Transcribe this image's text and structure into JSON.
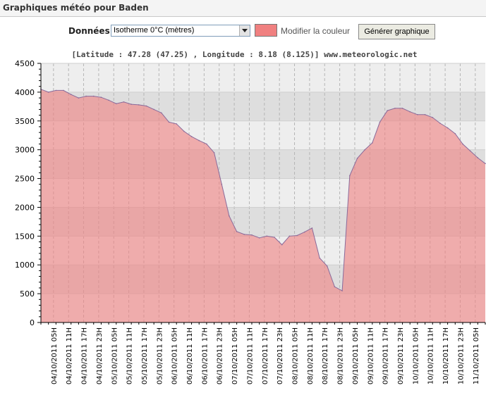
{
  "page": {
    "title": "Graphiques météo pour Baden"
  },
  "controls": {
    "data_label": "Données",
    "data_select_value": "Isotherme 0°C (mètres)",
    "swatch_color": "#f08080",
    "modify_color_label": "Modifier la couleur",
    "generate_button_label": "Générer graphique"
  },
  "coords_text": "[Latitude : 47.28 (47.25) , Longitude : 8.18 (8.125)] www.meteorologic.net",
  "chart_data": {
    "type": "area",
    "title": "",
    "xlabel": "",
    "ylabel": "",
    "ylim": [
      0,
      4500
    ],
    "yticks": [
      0,
      500,
      1000,
      1500,
      2000,
      2500,
      3000,
      3500,
      4000,
      4500
    ],
    "grid": true,
    "fill_color": "#f08080",
    "x_labels": [
      "04/10/2011 05H",
      "04/10/2011 11H",
      "04/10/2011 17H",
      "04/10/2011 23H",
      "05/10/2011 05H",
      "05/10/2011 11H",
      "05/10/2011 17H",
      "05/10/2011 23H",
      "06/10/2011 05H",
      "06/10/2011 11H",
      "06/10/2011 17H",
      "06/10/2011 23H",
      "07/10/2011 05H",
      "07/10/2011 11H",
      "07/10/2011 17H",
      "07/10/2011 23H",
      "08/10/2011 05H",
      "08/10/2011 11H",
      "08/10/2011 17H",
      "08/10/2011 23H",
      "09/10/2011 05H",
      "09/10/2011 11H",
      "09/10/2011 17H",
      "09/10/2011 23H",
      "10/10/2011 05H",
      "10/10/2011 11H",
      "10/10/2011 17H",
      "10/10/2011 23H",
      "11/10/2011 05H",
      "11/10/2011 11H"
    ],
    "x_step_hours": 3,
    "x_start_hour": 0,
    "values": [
      4050,
      4000,
      4030,
      4030,
      3960,
      3900,
      3930,
      3930,
      3910,
      3860,
      3800,
      3830,
      3790,
      3780,
      3760,
      3700,
      3640,
      3480,
      3450,
      3320,
      3230,
      3160,
      3100,
      2950,
      2400,
      1850,
      1580,
      1530,
      1520,
      1470,
      1500,
      1480,
      1350,
      1500,
      1510,
      1570,
      1640,
      1120,
      980,
      620,
      550,
      2550,
      2850,
      3000,
      3120,
      3480,
      3680,
      3720,
      3720,
      3660,
      3610,
      3610,
      3560,
      3460,
      3380,
      3280,
      3100,
      2980,
      2860,
      2760
    ]
  }
}
